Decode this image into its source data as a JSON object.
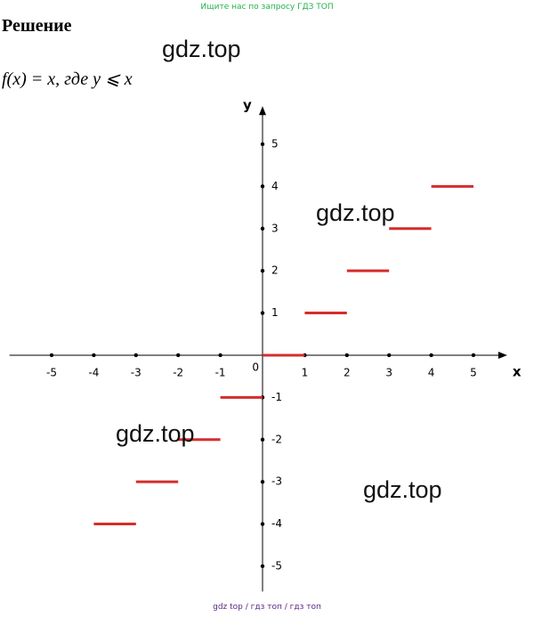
{
  "top_link": "Ищите нас по запросу ГДЗ ТОП",
  "heading": "Решение",
  "formula": "f(x) = x, где y ⩽ x",
  "watermarks": [
    "gdz.top",
    "gdz.top",
    "gdz.top",
    "gdz.top"
  ],
  "footer": "gdz top / гдз топ / гдз топ",
  "chart_data": {
    "type": "step",
    "x_label": "x",
    "y_label": "y",
    "origin_label": "0",
    "xlim": [
      -6,
      5.8
    ],
    "ylim": [
      -5.6,
      5.9
    ],
    "xticks": [
      -5,
      -4,
      -3,
      -2,
      -1,
      1,
      2,
      3,
      4,
      5
    ],
    "yticks": [
      -5,
      -4,
      -3,
      -2,
      -1,
      1,
      2,
      3,
      4,
      5
    ],
    "color": "#d62c2c",
    "segments": [
      {
        "x": [
          -4,
          -3
        ],
        "y": -4
      },
      {
        "x": [
          -3,
          -2
        ],
        "y": -3
      },
      {
        "x": [
          -2,
          -1
        ],
        "y": -2
      },
      {
        "x": [
          -1,
          0
        ],
        "y": -1
      },
      {
        "x": [
          0,
          1
        ],
        "y": 0
      },
      {
        "x": [
          1,
          2
        ],
        "y": 1
      },
      {
        "x": [
          2,
          3
        ],
        "y": 2
      },
      {
        "x": [
          3,
          4
        ],
        "y": 3
      },
      {
        "x": [
          4,
          5
        ],
        "y": 4
      }
    ]
  }
}
